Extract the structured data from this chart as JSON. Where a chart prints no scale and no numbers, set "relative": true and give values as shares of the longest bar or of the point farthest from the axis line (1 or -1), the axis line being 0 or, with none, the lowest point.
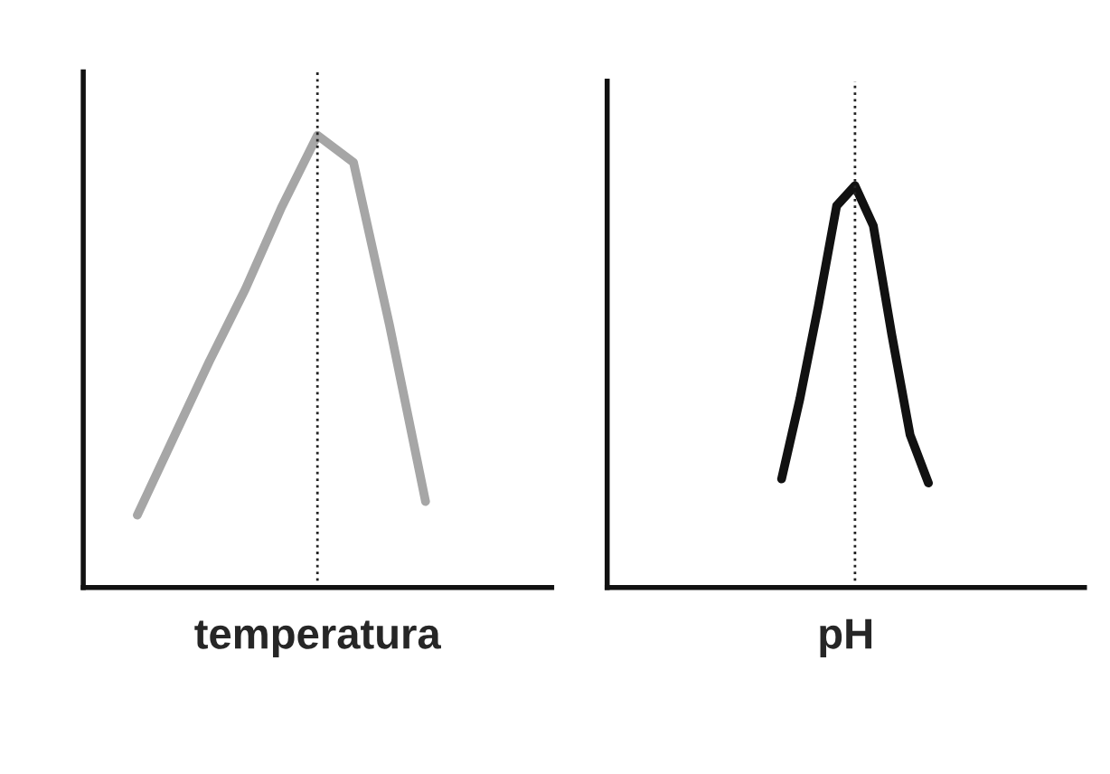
{
  "chart_data": [
    {
      "type": "line",
      "relative": true,
      "xlabel": "temperatura",
      "marker": "none",
      "line_style": "solid",
      "categories": [
        null,
        null,
        null,
        null,
        null,
        null,
        null,
        null,
        null,
        null,
        null,
        null,
        null
      ],
      "series": [
        {
          "color": "#a6a6a6",
          "values": [
            null,
            0.16,
            0.33,
            0.5,
            0.66,
            0.84,
            1.0,
            0.94,
            0.58,
            0.19,
            null,
            null,
            null
          ]
        }
      ]
    },
    {
      "type": "line",
      "relative": true,
      "xlabel": "pH",
      "marker": "none",
      "line_style": "solid",
      "categories": [
        null,
        null,
        null,
        null,
        null,
        null,
        null,
        null,
        null,
        null,
        null,
        null,
        null,
        null,
        null,
        null,
        null,
        null,
        null,
        null,
        null,
        null,
        null,
        null,
        null,
        null
      ],
      "series": [
        {
          "color": "#111111",
          "values": [
            null,
            null,
            null,
            null,
            null,
            null,
            null,
            null,
            null,
            0.27,
            0.47,
            0.7,
            0.95,
            1.0,
            0.9,
            0.63,
            0.38,
            0.26,
            null,
            null,
            null,
            null,
            null,
            null,
            null,
            null
          ]
        }
      ]
    }
  ]
}
